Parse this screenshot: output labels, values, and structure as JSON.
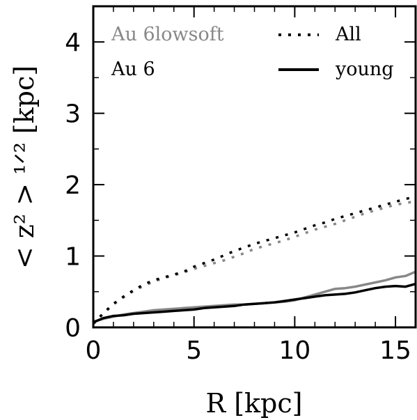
{
  "chart_data": {
    "type": "line",
    "xlabel": "R [kpc]",
    "ylabel": "< z² > ¹ᐟ² [kpc]",
    "xlim": [
      0,
      16
    ],
    "ylim": [
      0,
      4.5
    ],
    "x_ticks": [
      "0",
      "5",
      "10",
      "15"
    ],
    "y_ticks": [
      "0",
      "1",
      "2",
      "3",
      "4"
    ],
    "x_tick_values": [
      0,
      5,
      10,
      15
    ],
    "y_tick_values": [
      0,
      1,
      2,
      3,
      4
    ],
    "grid": false,
    "run_legend": [
      {
        "label": "Au 6lowsoft",
        "color": "#888888"
      },
      {
        "label": "Au 6",
        "color": "#000000"
      }
    ],
    "style_legend": [
      {
        "label": "All",
        "style": "dotted"
      },
      {
        "label": "young",
        "style": "solid"
      }
    ],
    "series": [
      {
        "run": "Au 6",
        "population": "All",
        "color": "#000000",
        "style": "dotted",
        "x": [
          0,
          0.5,
          1,
          1.5,
          2,
          2.5,
          3,
          3.5,
          4,
          4.5,
          5,
          5.5,
          6,
          6.5,
          7,
          7.5,
          8,
          8.5,
          9,
          9.5,
          10,
          10.5,
          11,
          11.5,
          12,
          12.5,
          13,
          13.5,
          14,
          14.5,
          15,
          15.5,
          16
        ],
        "y": [
          0.05,
          0.2,
          0.33,
          0.43,
          0.52,
          0.6,
          0.66,
          0.7,
          0.74,
          0.78,
          0.85,
          0.9,
          0.95,
          1.01,
          1.07,
          1.12,
          1.17,
          1.21,
          1.25,
          1.29,
          1.33,
          1.38,
          1.43,
          1.47,
          1.52,
          1.56,
          1.6,
          1.64,
          1.68,
          1.72,
          1.76,
          1.8,
          1.83
        ]
      },
      {
        "run": "Au 6lowsoft",
        "population": "All",
        "color": "#888888",
        "style": "dotted",
        "x": [
          0,
          0.5,
          1,
          1.5,
          2,
          2.5,
          3,
          3.5,
          4,
          4.5,
          5,
          5.5,
          6,
          6.5,
          7,
          7.5,
          8,
          8.5,
          9,
          9.5,
          10,
          10.5,
          11,
          11.5,
          12,
          12.5,
          13,
          13.5,
          14,
          14.5,
          15,
          15.5,
          16
        ],
        "y": [
          0.05,
          0.19,
          0.32,
          0.42,
          0.51,
          0.58,
          0.64,
          0.69,
          0.73,
          0.77,
          0.82,
          0.86,
          0.9,
          0.94,
          0.99,
          1.04,
          1.1,
          1.14,
          1.18,
          1.22,
          1.27,
          1.32,
          1.37,
          1.41,
          1.45,
          1.5,
          1.55,
          1.6,
          1.64,
          1.68,
          1.72,
          1.74,
          1.77
        ]
      },
      {
        "run": "Au 6",
        "population": "young",
        "color": "#000000",
        "style": "solid",
        "x": [
          0,
          0.5,
          1,
          1.5,
          2,
          2.5,
          3,
          3.5,
          4,
          4.5,
          5,
          5.5,
          6,
          6.5,
          7,
          7.5,
          8,
          8.5,
          9,
          9.5,
          10,
          10.5,
          11,
          11.5,
          12,
          12.5,
          13,
          13.5,
          14,
          14.5,
          15,
          15.5,
          16
        ],
        "y": [
          0.07,
          0.13,
          0.16,
          0.17,
          0.19,
          0.2,
          0.21,
          0.22,
          0.23,
          0.24,
          0.25,
          0.27,
          0.28,
          0.29,
          0.3,
          0.32,
          0.33,
          0.34,
          0.35,
          0.37,
          0.39,
          0.41,
          0.43,
          0.45,
          0.46,
          0.47,
          0.49,
          0.52,
          0.55,
          0.57,
          0.58,
          0.57,
          0.61
        ]
      },
      {
        "run": "Au 6lowsoft",
        "population": "young",
        "color": "#888888",
        "style": "solid",
        "x": [
          0,
          0.5,
          1,
          1.5,
          2,
          2.5,
          3,
          3.5,
          4,
          4.5,
          5,
          5.5,
          6,
          6.5,
          7,
          7.5,
          8,
          8.5,
          9,
          9.5,
          10,
          10.5,
          11,
          11.5,
          12,
          12.5,
          13,
          13.5,
          14,
          14.5,
          15,
          15.5,
          16
        ],
        "y": [
          0.08,
          0.12,
          0.15,
          0.18,
          0.2,
          0.22,
          0.24,
          0.25,
          0.26,
          0.27,
          0.28,
          0.29,
          0.3,
          0.31,
          0.32,
          0.32,
          0.33,
          0.34,
          0.35,
          0.36,
          0.38,
          0.42,
          0.46,
          0.5,
          0.54,
          0.55,
          0.57,
          0.6,
          0.63,
          0.66,
          0.7,
          0.72,
          0.78
        ]
      }
    ]
  }
}
